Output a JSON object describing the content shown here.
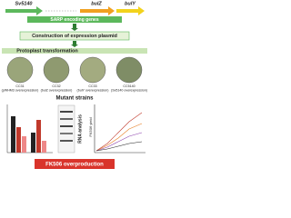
{
  "genes": [
    "Sv5140",
    "bulZ",
    "bulY"
  ],
  "gene_group": "SARP encoding genes",
  "steps": [
    "Construction of expression plasmid",
    "Protoplast transformation"
  ],
  "strains": [
    {
      "name": "CC31",
      "desc": "(pWHM3 overexpression)"
    },
    {
      "name": "CC32",
      "desc": "(bulZ overexpression)"
    },
    {
      "name": "CC33",
      "desc": "(bulY overexpression)"
    },
    {
      "name": "CC5140",
      "desc": "(Sv5140 overexpression)"
    }
  ],
  "mutant_title": "Mutant strains",
  "panels": [
    "RNA analysis",
    "FK506 yield"
  ],
  "result": "FK506 overproduction"
}
